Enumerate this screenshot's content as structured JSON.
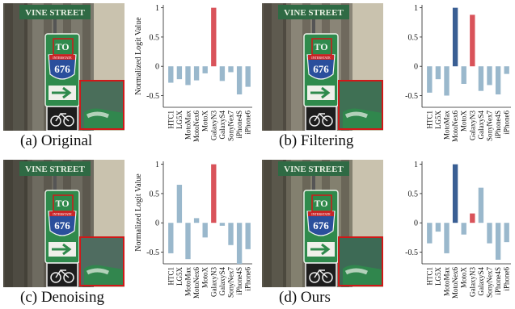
{
  "panels": [
    {
      "caption": "(a) Original"
    },
    {
      "caption": "(b) Filtering"
    },
    {
      "caption": "(c) Denoising"
    },
    {
      "caption": "(d) Ours"
    }
  ],
  "photo_text": {
    "street_sign": "VINE STREET",
    "route_number": "676",
    "interstate": "INTERSTATE",
    "to_word": "TO"
  },
  "colors": {
    "bar_default": "#9ab8cc",
    "bar_target": "#d9535a",
    "bar_true": "#3a5f94",
    "zoom_border": "#d01818"
  },
  "chart_data": [
    {
      "type": "bar",
      "categories": [
        "HTC1",
        "LG5X",
        "MotoMax",
        "MotoNex6",
        "MotoX",
        "GalaxyN3",
        "GalaxyS4",
        "SonyNex7",
        "iPhone4S",
        "iPhone6"
      ],
      "values": [
        -0.28,
        -0.22,
        -0.32,
        -0.24,
        -0.12,
        1.0,
        -0.25,
        -0.1,
        -0.48,
        -0.35
      ],
      "highlight": {
        "GalaxyN3": "target"
      },
      "ylabel": "Normalized Logit Value",
      "ylim": [
        -0.7,
        1.05
      ],
      "yticks": [
        -0.5,
        0,
        0.5,
        1
      ]
    },
    {
      "type": "bar",
      "categories": [
        "HTC1",
        "LG5X",
        "MotoMax",
        "MotoNex6",
        "MotoX",
        "GalaxyN3",
        "GalaxyS4",
        "SonyNex7",
        "iPhone4S",
        "iPhone6"
      ],
      "values": [
        -0.45,
        -0.22,
        -0.5,
        1.0,
        -0.3,
        0.88,
        -0.42,
        -0.32,
        -0.48,
        -0.13
      ],
      "highlight": {
        "MotoNex6": "true",
        "GalaxyN3": "target"
      },
      "ylabel": "",
      "ylim": [
        -0.7,
        1.05
      ],
      "yticks": [
        -0.5,
        0,
        0.5,
        1
      ]
    },
    {
      "type": "bar",
      "categories": [
        "HTC1",
        "LG5X",
        "MotoMax",
        "MotoNex6",
        "MotoX",
        "GalaxyN3",
        "GalaxyS4",
        "SonyNex7",
        "iPhone4S",
        "iPhone6"
      ],
      "values": [
        -0.52,
        0.65,
        -0.62,
        0.08,
        -0.25,
        1.0,
        -0.05,
        -0.38,
        -0.7,
        -0.45
      ],
      "highlight": {
        "GalaxyN3": "target"
      },
      "ylabel": "Normalized Logit Value",
      "ylim": [
        -0.7,
        1.05
      ],
      "yticks": [
        -0.5,
        0,
        0.5,
        1
      ]
    },
    {
      "type": "bar",
      "categories": [
        "HTC1",
        "LG5X",
        "MotoMax",
        "MotoNex6",
        "MotoX",
        "GalaxyN3",
        "GalaxyS4",
        "SonyNex7",
        "iPhone4S",
        "iPhone6"
      ],
      "values": [
        -0.35,
        -0.15,
        -0.52,
        1.0,
        -0.2,
        0.16,
        0.6,
        -0.35,
        -0.63,
        -0.33
      ],
      "highlight": {
        "MotoNex6": "true",
        "GalaxyN3": "target"
      },
      "ylabel": "",
      "ylim": [
        -0.7,
        1.05
      ],
      "yticks": [
        -0.5,
        0,
        0.5,
        1
      ]
    }
  ]
}
